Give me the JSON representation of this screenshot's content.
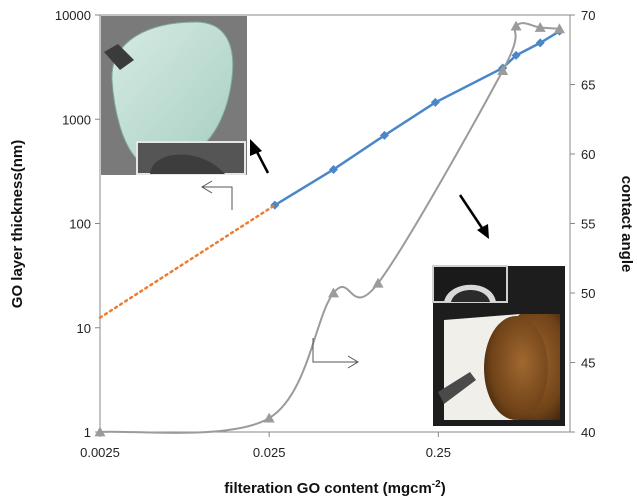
{
  "chart_data": {
    "type": "line",
    "xlabel": "filteration GO content (mgcm",
    "xlabel_sup": "-2",
    "xlabel_end": ")",
    "ylabel_left": "GO layer thickness(nm)",
    "ylabel_right": "contact angle",
    "x_scale": "log",
    "xlim": [
      0.0025,
      1.5
    ],
    "x_ticks": [
      "0.0025",
      "0.025",
      "0.25"
    ],
    "x_tick_values": [
      0.0025,
      0.025,
      0.25
    ],
    "y_left_scale": "log",
    "y_left_lim": [
      1,
      10000
    ],
    "y_left_ticks": [
      "1",
      "10",
      "100",
      "1000",
      "10000"
    ],
    "y_left_tick_values": [
      1,
      10,
      100,
      1000,
      10000
    ],
    "y_right_lim": [
      40,
      70
    ],
    "y_right_ticks": [
      "40",
      "45",
      "50",
      "55",
      "60",
      "65",
      "70"
    ],
    "y_right_tick_values": [
      40,
      45,
      50,
      55,
      60,
      65,
      70
    ],
    "grid": false,
    "series": [
      {
        "axis": "left",
        "color": "#4a86c8",
        "marker": "diamond",
        "x": [
          0.027,
          0.06,
          0.12,
          0.24,
          0.6,
          0.72,
          1.0,
          1.3
        ],
        "y": [
          150,
          330,
          700,
          1450,
          3100,
          4100,
          5400,
          7000
        ]
      },
      {
        "axis": "left",
        "color": "#ed7d31",
        "style": "dotted",
        "x": [
          0.0025,
          0.027
        ],
        "y": [
          12.5,
          150
        ]
      },
      {
        "axis": "right",
        "color": "#9b9b9b",
        "marker": "triangle",
        "x": [
          0.0025,
          0.025,
          0.06,
          0.11,
          0.6,
          0.72,
          1.0,
          1.3
        ],
        "y": [
          40,
          41,
          50,
          50.7,
          66,
          69.2,
          69.1,
          69
        ]
      }
    ]
  }
}
